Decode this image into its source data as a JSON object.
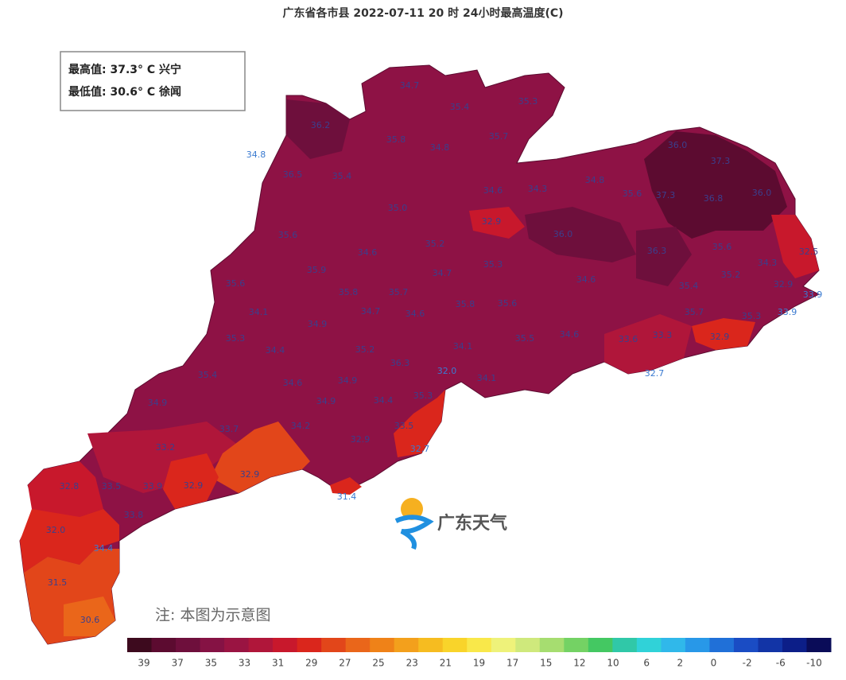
{
  "header": {
    "title": "广东省各市县 2022-07-11 20 时 24小时最高温度(C)"
  },
  "stats": {
    "max": "最高值: 37.3° C 兴宁",
    "min": "最低值: 30.6° C 徐闻"
  },
  "labels": [
    "34.7",
    "35.4",
    "35.3",
    "36.2",
    "35.8",
    "34.8",
    "35.7",
    "34.8",
    "36.0",
    "37.3",
    "36.5",
    "35.4",
    "34.6",
    "34.3",
    "34.8",
    "35.6",
    "37.3",
    "36.8",
    "36.0",
    "35.0",
    "32.9",
    "36.0",
    "35.6",
    "35.2",
    "36.3",
    "35.6",
    "34.3",
    "32.5",
    "34.6",
    "35.9",
    "35.3",
    "34.7",
    "35.2",
    "34.6",
    "32.9",
    "33.9",
    "35.6",
    "35.8",
    "35.7",
    "35.4",
    "35.8",
    "35.6",
    "34.1",
    "34.9",
    "34.7",
    "34.6",
    "35.7",
    "35.3",
    "33.9",
    "35.3",
    "34.4",
    "35.2",
    "34.1",
    "35.5",
    "34.6",
    "33.6",
    "33.3",
    "32.9",
    "36.3",
    "35.4",
    "34.6",
    "34.9",
    "32.0",
    "34.1",
    "32.7",
    "34.9",
    "34.9",
    "34.4",
    "35.3",
    "33.7",
    "34.2",
    "33.5",
    "32.9",
    "33.2",
    "32.7",
    "32.8",
    "33.5",
    "33.9",
    "32.9",
    "32.9",
    "31.4",
    "33.8",
    "32.0",
    "34.4",
    "31.5",
    "30.6"
  ],
  "logo": "广东天气",
  "note": "注: 本图为示意图",
  "legend": {
    "colors": [
      "#3d0a1e",
      "#5c0b30",
      "#6e0f3c",
      "#851244",
      "#9a1442",
      "#b0163a",
      "#c8182c",
      "#da261c",
      "#e2461a",
      "#ea661a",
      "#ef8218",
      "#f3a01c",
      "#f6bc20",
      "#f9d42a",
      "#f9e84a",
      "#eef27a",
      "#cfe97c",
      "#a6dd70",
      "#74d264",
      "#44c862",
      "#30c8a8",
      "#30d2d8",
      "#30b8ea",
      "#2898e8",
      "#2070d8",
      "#1a4cc4",
      "#1234a6",
      "#0c1e88",
      "#0a0c58"
    ],
    "ticks": [
      "39",
      "37",
      "35",
      "33",
      "31",
      "29",
      "27",
      "25",
      "23",
      "21",
      "19",
      "17",
      "15",
      "12",
      "10",
      "6",
      "2",
      "0",
      "-2",
      "-6",
      "-10"
    ]
  }
}
